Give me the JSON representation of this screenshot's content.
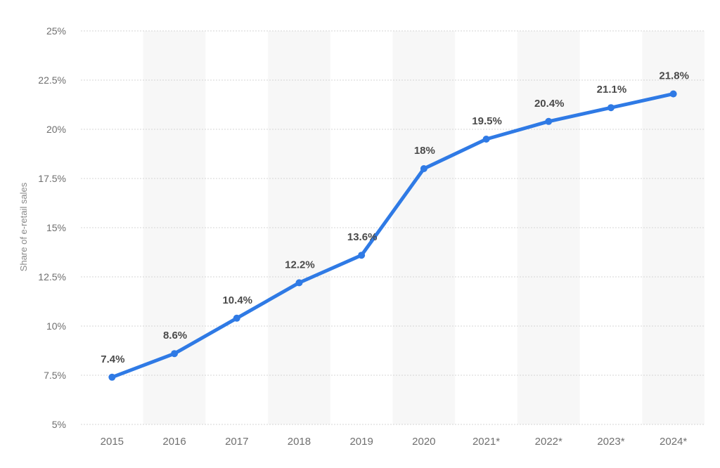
{
  "colors": {
    "series": "#2f7ae5",
    "band": "#f7f7f7",
    "grid": "#d4d4d4"
  },
  "chart_data": {
    "type": "line",
    "title": "",
    "xlabel": "",
    "ylabel": "Share of e-retail sales",
    "categories": [
      "2015",
      "2016",
      "2017",
      "2018",
      "2019",
      "2020",
      "2021*",
      "2022*",
      "2023*",
      "2024*"
    ],
    "values": [
      7.4,
      8.6,
      10.4,
      12.2,
      13.6,
      18,
      19.5,
      20.4,
      21.1,
      21.8
    ],
    "data_labels": [
      "7.4%",
      "8.6%",
      "10.4%",
      "12.2%",
      "13.6%",
      "18%",
      "19.5%",
      "20.4%",
      "21.1%",
      "21.8%"
    ],
    "ylim": [
      5,
      25
    ],
    "yticks": [
      5,
      7.5,
      10,
      12.5,
      15,
      17.5,
      20,
      22.5,
      25
    ],
    "ytick_labels": [
      "5%",
      "7.5%",
      "10%",
      "12.5%",
      "15%",
      "17.5%",
      "20%",
      "22.5%",
      "25%"
    ],
    "grid": true,
    "legend": "none"
  }
}
